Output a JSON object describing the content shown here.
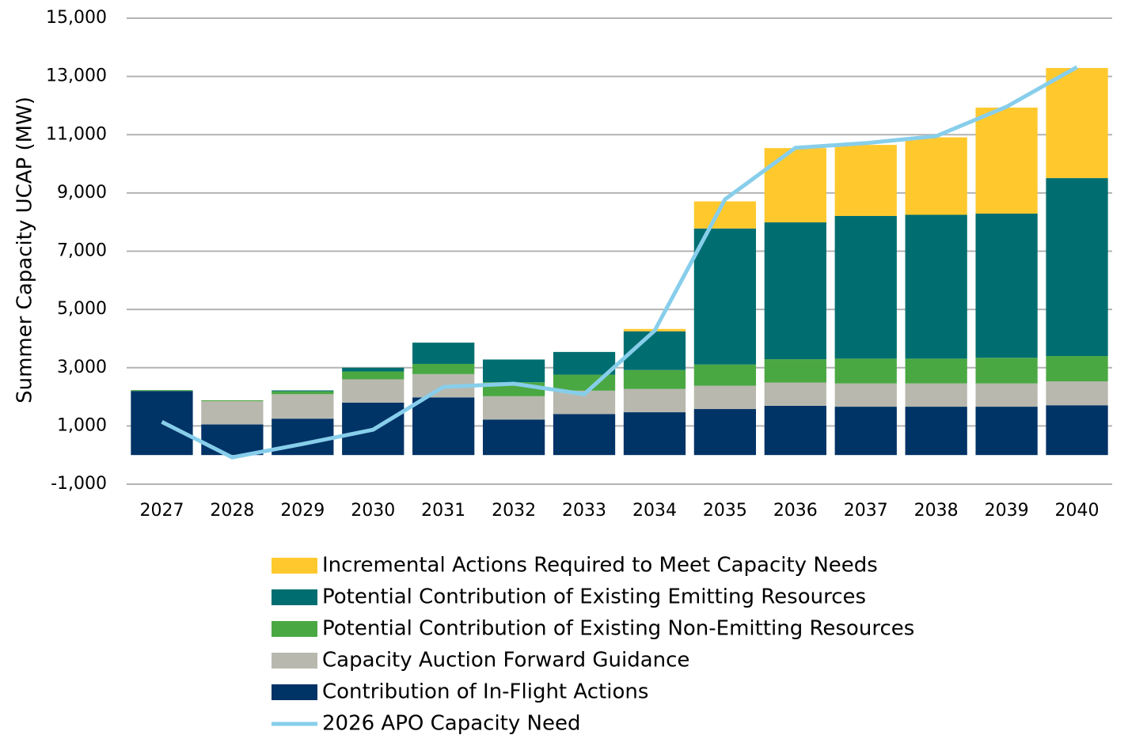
{
  "chart_data": {
    "type": "bar",
    "stacked": true,
    "y_label": "Summer Capacity UCAP (MW)",
    "categories": [
      "2027",
      "2028",
      "2029",
      "2030",
      "2031",
      "2032",
      "2033",
      "2034",
      "2035",
      "2036",
      "2037",
      "2038",
      "2039",
      "2040"
    ],
    "ylim": [
      -1000,
      15000
    ],
    "yticks": [
      {
        "value": -1000,
        "label": "-1,000"
      },
      {
        "value": 1000,
        "label": "1,000"
      },
      {
        "value": 3000,
        "label": "3,000"
      },
      {
        "value": 5000,
        "label": "5,000"
      },
      {
        "value": 7000,
        "label": "7,000"
      },
      {
        "value": 9000,
        "label": "9,000"
      },
      {
        "value": 11000,
        "label": "11,000"
      },
      {
        "value": 13000,
        "label": "13,000"
      },
      {
        "value": 15000,
        "label": "15,000"
      }
    ],
    "grid": true,
    "series": [
      {
        "name": "Contribution of In-Flight Actions",
        "type": "bar",
        "color": "#003366",
        "values": [
          2200,
          1050,
          1250,
          1800,
          1980,
          1220,
          1410,
          1470,
          1580,
          1690,
          1660,
          1660,
          1660,
          1710
        ]
      },
      {
        "name": "Capacity Auction Forward Guidance",
        "type": "bar",
        "color": "#b8b8ae",
        "values": [
          0,
          800,
          840,
          800,
          800,
          800,
          800,
          800,
          800,
          800,
          800,
          800,
          800,
          820
        ]
      },
      {
        "name": "Potential Contribution of Existing Non-Emitting Resources",
        "type": "bar",
        "color": "#4aa843",
        "values": [
          30,
          30,
          100,
          270,
          350,
          480,
          550,
          650,
          730,
          800,
          850,
          850,
          880,
          870
        ]
      },
      {
        "name": "Potential Contribution of Existing Emitting Resources",
        "type": "bar",
        "color": "#006e70",
        "values": [
          0,
          0,
          30,
          130,
          730,
          780,
          780,
          1330,
          4670,
          4700,
          4900,
          4940,
          4950,
          6110
        ]
      },
      {
        "name": "Incremental Actions Required to Meet Capacity Needs",
        "type": "bar",
        "color": "#ffc92e",
        "values": [
          0,
          0,
          0,
          0,
          0,
          0,
          0,
          80,
          930,
          2550,
          2440,
          2660,
          3640,
          3780
        ]
      },
      {
        "name": "2026 APO Capacity Need",
        "type": "line",
        "color": "#87ceeb",
        "values": [
          1140,
          -80,
          380,
          870,
          2340,
          2450,
          2090,
          4270,
          8780,
          10550,
          10710,
          10950,
          11960,
          13320
        ]
      }
    ]
  }
}
